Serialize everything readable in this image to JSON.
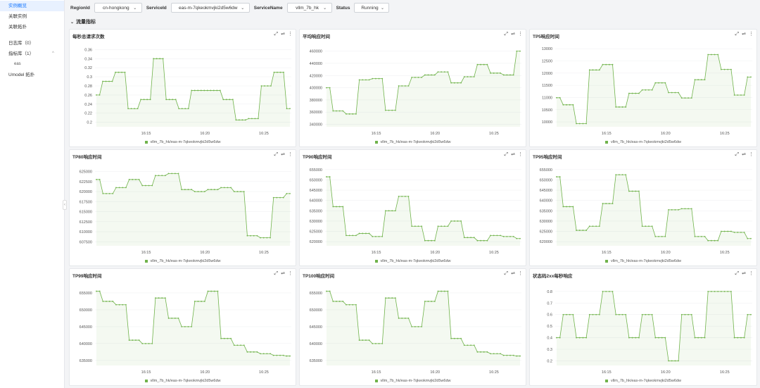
{
  "sidebar": {
    "items": [
      {
        "label": "实例概览",
        "active": true
      },
      {
        "label": "关联实例"
      },
      {
        "label": "关联拓扑"
      }
    ],
    "groups": [
      {
        "label": "日志库（0）"
      },
      {
        "label": "指标库（1）",
        "arrow": "^"
      },
      {
        "label": "eas",
        "sub": true
      },
      {
        "label": "Umodel 拓扑"
      }
    ],
    "collapse_icon": "‹"
  },
  "filters": [
    {
      "label": "RegionId",
      "value": "cn-hongkong"
    },
    {
      "label": "ServiceId",
      "value": "eas-m-7qkeokmvjki2d5w6dw"
    },
    {
      "label": "ServiceName",
      "value": "vllm_7b_hk"
    },
    {
      "label": "Status",
      "value": "Running"
    }
  ],
  "section": {
    "title": "流量指标"
  },
  "legend_label": "vllm_7b_hk/eas-m-7qkeokmvjki2d5w6dw",
  "series_color": "#70b34b",
  "chart_data": [
    {
      "type": "line",
      "title": "每秒总请求次数",
      "x_ticks": [
        "16:15",
        "16:20",
        "16:25"
      ],
      "y_ticks": [
        "0.36",
        "0.34",
        "0.32",
        "0.3",
        "0.28",
        "0.26",
        "0.24",
        "0.22",
        "0.2"
      ],
      "ylim": [
        0.19,
        0.37
      ],
      "values": [
        0.26,
        0.26,
        0.29,
        0.29,
        0.29,
        0.29,
        0.31,
        0.31,
        0.31,
        0.31,
        0.23,
        0.23,
        0.23,
        0.23,
        0.25,
        0.25,
        0.25,
        0.25,
        0.34,
        0.34,
        0.34,
        0.34,
        0.25,
        0.25,
        0.25,
        0.25,
        0.23,
        0.23,
        0.23,
        0.23,
        0.27,
        0.27,
        0.27,
        0.27,
        0.27,
        0.27,
        0.27,
        0.27,
        0.27,
        0.27,
        0.25,
        0.25,
        0.25,
        0.25,
        0.205,
        0.205,
        0.205,
        0.205,
        0.208,
        0.208,
        0.208,
        0.208,
        0.28,
        0.28,
        0.28,
        0.28,
        0.31,
        0.31,
        0.31,
        0.31,
        0.23,
        0.23
      ]
    },
    {
      "type": "line",
      "title": "平均响应时间",
      "x_ticks": [
        "16:15",
        "16:20",
        "16:25"
      ],
      "y_ticks": [
        "460000",
        "440000",
        "420000",
        "400000",
        "380000",
        "360000",
        "340000"
      ],
      "ylim": [
        336000,
        470000
      ],
      "values": [
        400000,
        400000,
        362000,
        362000,
        362000,
        362000,
        357000,
        357000,
        357000,
        357000,
        413000,
        413000,
        413000,
        413000,
        415000,
        415000,
        415000,
        415000,
        363000,
        363000,
        363000,
        363000,
        403000,
        403000,
        403000,
        403000,
        417000,
        417000,
        417000,
        417000,
        421000,
        421000,
        421000,
        421000,
        426000,
        426000,
        426000,
        426000,
        408000,
        408000,
        408000,
        408000,
        418000,
        418000,
        418000,
        418000,
        438000,
        438000,
        438000,
        438000,
        424000,
        424000,
        424000,
        424000,
        421000,
        421000,
        421000,
        421000,
        460000,
        460000
      ]
    },
    {
      "type": "line",
      "title": "TP5响应时间",
      "x_ticks": [
        "16:15",
        "16:20",
        "16:25"
      ],
      "y_ticks": [
        "13000",
        "12500",
        "12000",
        "11500",
        "11000",
        "10500",
        "10000"
      ],
      "ylim": [
        9800,
        13150
      ],
      "values": [
        10990,
        10990,
        10700,
        10700,
        10700,
        10700,
        9930,
        9930,
        9930,
        9930,
        12130,
        12130,
        12130,
        12130,
        12350,
        12350,
        12350,
        12350,
        10610,
        10610,
        10610,
        10610,
        11170,
        11170,
        11170,
        11170,
        11310,
        11310,
        11310,
        11310,
        11600,
        11600,
        11600,
        11600,
        11200,
        11200,
        11200,
        11200,
        10980,
        10980,
        10980,
        10980,
        11730,
        11730,
        11730,
        11730,
        12760,
        12760,
        12760,
        12760,
        12150,
        12150,
        12150,
        12150,
        11100,
        11100,
        11100,
        11100,
        11840,
        11840
      ]
    },
    {
      "type": "line",
      "title": "TP80响应时间",
      "x_ticks": [
        "16:15",
        "16:20",
        "16:25"
      ],
      "y_ticks": [
        "625000",
        "622500",
        "620000",
        "617500",
        "615000",
        "612500",
        "610000",
        "607500"
      ],
      "ylim": [
        606500,
        626500
      ],
      "values": [
        623000,
        623000,
        619500,
        619500,
        619500,
        619500,
        621000,
        621000,
        621000,
        621000,
        623000,
        623000,
        623000,
        623000,
        621500,
        621500,
        621500,
        621500,
        624000,
        624000,
        624000,
        624000,
        624500,
        624500,
        624500,
        624500,
        620500,
        620500,
        620500,
        620500,
        620000,
        620000,
        620000,
        620000,
        620500,
        620500,
        620500,
        620500,
        621000,
        621000,
        621000,
        621000,
        620000,
        620000,
        620000,
        620000,
        609000,
        609000,
        609000,
        609000,
        608500,
        608500,
        608500,
        608500,
        618500,
        618500,
        618500,
        618500,
        619500,
        619500
      ]
    },
    {
      "type": "line",
      "title": "TP90响应时间",
      "x_ticks": [
        "16:15",
        "16:20",
        "16:25"
      ],
      "y_ticks": [
        "655000",
        "650000",
        "645000",
        "640000",
        "635000",
        "630000",
        "625000",
        "620000"
      ],
      "ylim": [
        618000,
        657000
      ],
      "values": [
        651500,
        651500,
        637000,
        637000,
        637000,
        637000,
        623000,
        623000,
        623000,
        623000,
        624000,
        624000,
        624000,
        624000,
        622500,
        622500,
        622500,
        622500,
        635000,
        635000,
        635000,
        635000,
        642000,
        642000,
        642000,
        642000,
        627500,
        627500,
        627500,
        627500,
        620500,
        620500,
        620500,
        620500,
        627500,
        627500,
        627500,
        627500,
        630000,
        630000,
        630000,
        630000,
        622000,
        622000,
        622000,
        622000,
        620500,
        620500,
        620500,
        620500,
        623000,
        623000,
        623000,
        623000,
        622500,
        622500,
        622500,
        622500,
        621500,
        621500
      ]
    },
    {
      "type": "line",
      "title": "TP95响应时间",
      "x_ticks": [
        "16:15",
        "16:20",
        "16:25"
      ],
      "y_ticks": [
        "655000",
        "650000",
        "645000",
        "640000",
        "635000",
        "630000",
        "625000",
        "620000"
      ],
      "ylim": [
        618000,
        657000
      ],
      "values": [
        651500,
        651500,
        637000,
        637000,
        637000,
        637000,
        625500,
        625500,
        625500,
        625500,
        627500,
        627500,
        627500,
        627500,
        638500,
        638500,
        638500,
        638500,
        652500,
        652500,
        652500,
        652500,
        644500,
        644500,
        644500,
        644500,
        627500,
        627500,
        627500,
        627500,
        622500,
        622500,
        622500,
        622500,
        635500,
        635500,
        635500,
        635500,
        636000,
        636000,
        636000,
        636000,
        622500,
        622500,
        622500,
        622500,
        620500,
        620500,
        620500,
        620500,
        625000,
        625000,
        625000,
        625000,
        624500,
        624500,
        624500,
        624500,
        621500,
        621500
      ]
    },
    {
      "type": "line",
      "title": "TP99响应时间",
      "x_ticks": [
        "16:15",
        "16:20",
        "16:25"
      ],
      "y_ticks": [
        "655000",
        "650000",
        "645000",
        "640000",
        "635000"
      ],
      "ylim": [
        633500,
        657500
      ],
      "values": [
        655500,
        655500,
        652500,
        652500,
        652500,
        652500,
        651500,
        651500,
        651500,
        651500,
        641000,
        641000,
        641000,
        641000,
        640000,
        640000,
        640000,
        640000,
        653500,
        653500,
        653500,
        653500,
        647500,
        647500,
        647500,
        647500,
        645000,
        645000,
        645000,
        645000,
        652500,
        652500,
        652500,
        652500,
        655500,
        655500,
        655500,
        655500,
        641500,
        641500,
        641500,
        641500,
        639500,
        639500,
        639500,
        639500,
        637500,
        637500,
        637500,
        637500,
        637000,
        637000,
        637000,
        637000,
        636500,
        636500,
        636500,
        636500,
        636300,
        636300
      ]
    },
    {
      "type": "line",
      "title": "TP100响应时间",
      "x_ticks": [
        "16:15",
        "16:20",
        "16:25"
      ],
      "y_ticks": [
        "655000",
        "650000",
        "645000",
        "640000",
        "635000"
      ],
      "ylim": [
        633500,
        657500
      ],
      "values": [
        655500,
        655500,
        652500,
        652500,
        652500,
        652500,
        651500,
        651500,
        651500,
        651500,
        641000,
        641000,
        641000,
        641000,
        640000,
        640000,
        640000,
        640000,
        653500,
        653500,
        653500,
        653500,
        647500,
        647500,
        647500,
        647500,
        645000,
        645000,
        645000,
        645000,
        652500,
        652500,
        652500,
        652500,
        655500,
        655500,
        655500,
        655500,
        641500,
        641500,
        641500,
        641500,
        639500,
        639500,
        639500,
        639500,
        637500,
        637500,
        637500,
        637500,
        637000,
        637000,
        637000,
        637000,
        636500,
        636500,
        636500,
        636500,
        636300,
        636300
      ]
    },
    {
      "type": "line",
      "title": "状态码2xx每秒响应",
      "x_ticks": [
        "16:15",
        "16:20",
        "16:25"
      ],
      "y_ticks": [
        "0.8",
        "0.7",
        "0.6",
        "0.5",
        "0.4",
        "0.3",
        "0.2"
      ],
      "ylim": [
        0.16,
        0.86
      ],
      "values": [
        0.4,
        0.4,
        0.6,
        0.6,
        0.6,
        0.6,
        0.4,
        0.4,
        0.4,
        0.4,
        0.6,
        0.6,
        0.6,
        0.6,
        0.8,
        0.8,
        0.8,
        0.8,
        0.6,
        0.6,
        0.6,
        0.6,
        0.4,
        0.4,
        0.4,
        0.4,
        0.6,
        0.6,
        0.6,
        0.6,
        0.4,
        0.4,
        0.4,
        0.4,
        0.2,
        0.2,
        0.2,
        0.2,
        0.6,
        0.6,
        0.6,
        0.6,
        0.4,
        0.4,
        0.4,
        0.4,
        0.8,
        0.8,
        0.8,
        0.8,
        0.8,
        0.8,
        0.8,
        0.8,
        0.4,
        0.4,
        0.4,
        0.4,
        0.6,
        0.6
      ]
    }
  ]
}
